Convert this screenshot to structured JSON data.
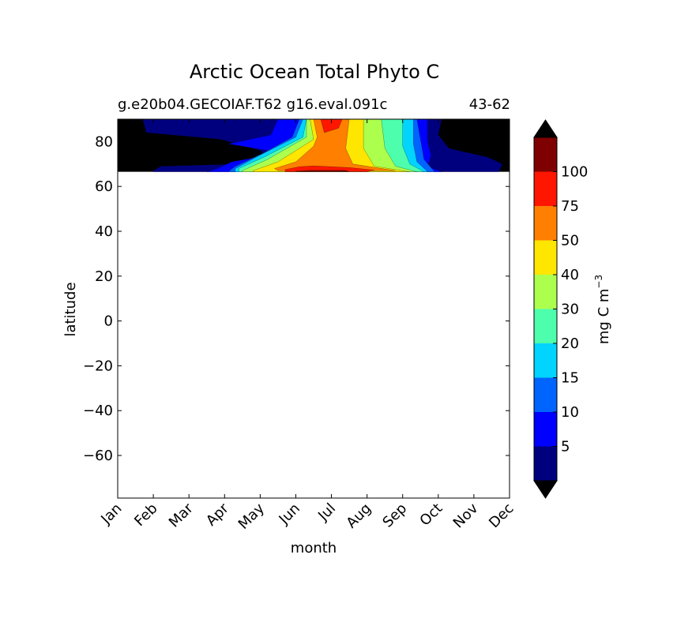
{
  "chart_data": {
    "type": "heatmap",
    "title": "Arctic Ocean Total Phyto C",
    "subtitle_left": "g.e20b04.GECOIAF.T62 g16.eval.091c",
    "subtitle_right": "43-62",
    "xlabel": "month",
    "ylabel": "latitude",
    "x_ticks": [
      "Jan",
      "Feb",
      "Mar",
      "Apr",
      "May",
      "Jun",
      "Jul",
      "Aug",
      "Sep",
      "Oct",
      "Nov",
      "Dec"
    ],
    "y_ticks": [
      "80",
      "60",
      "40",
      "20",
      "0",
      "−20",
      "−40",
      "−60"
    ],
    "y_tick_values": [
      80,
      60,
      40,
      20,
      0,
      -20,
      -40,
      -60
    ],
    "ylim": [
      -79,
      90
    ],
    "data_lat_range": [
      66.5,
      90
    ],
    "colorbar": {
      "label": "mg C m",
      "label_exponent": "−3",
      "tick_labels": [
        "5",
        "10",
        "15",
        "20",
        "30",
        "40",
        "50",
        "75",
        "100"
      ],
      "levels": [
        0,
        5,
        10,
        15,
        20,
        30,
        40,
        50,
        75,
        100,
        125
      ],
      "colors": [
        "#00007f",
        "#0000ff",
        "#0064ff",
        "#00d4ff",
        "#4dffad",
        "#adff4d",
        "#ffe600",
        "#ff7f00",
        "#ff1600",
        "#7f0000"
      ],
      "under_color": "#000000",
      "over_color": "#000000"
    },
    "background_color": "#000000",
    "contour_bands": [
      {
        "level": 5,
        "color": "#00007f",
        "extent": [
          [
            0.7,
            90
          ],
          [
            0.8,
            84
          ],
          [
            2.9,
            81
          ],
          [
            4.0,
            76
          ],
          [
            4.2,
            72
          ],
          [
            3.4,
            70
          ],
          [
            1.2,
            69
          ],
          [
            1.0,
            67
          ],
          [
            1.0,
            66.5
          ],
          [
            10.7,
            66.5
          ],
          [
            10.8,
            70
          ],
          [
            10.4,
            73
          ],
          [
            9.3,
            77
          ],
          [
            9.0,
            83
          ],
          [
            9.1,
            90
          ]
        ]
      },
      {
        "level": 10,
        "color": "#0000ff",
        "extent": [
          [
            4.5,
            90
          ],
          [
            4.3,
            83
          ],
          [
            3.1,
            79
          ],
          [
            4.6,
            75
          ],
          [
            3.2,
            71
          ],
          [
            2.8,
            68
          ],
          [
            2.5,
            66.5
          ],
          [
            9.1,
            66.5
          ],
          [
            8.7,
            69
          ],
          [
            8.8,
            74
          ],
          [
            8.7,
            80
          ],
          [
            8.7,
            90
          ]
        ]
      },
      {
        "level": 15,
        "color": "#0064ff",
        "extent": [
          [
            5.1,
            90
          ],
          [
            4.9,
            82
          ],
          [
            4.1,
            75
          ],
          [
            3.3,
            69
          ],
          [
            3.1,
            66.5
          ],
          [
            8.9,
            66.5
          ],
          [
            8.6,
            72
          ],
          [
            8.5,
            81
          ],
          [
            8.4,
            90
          ]
        ]
      },
      {
        "level": 20,
        "color": "#00d4ff",
        "extent": [
          [
            5.2,
            90
          ],
          [
            5.0,
            82
          ],
          [
            4.0,
            74
          ],
          [
            3.3,
            68
          ],
          [
            3.3,
            66.5
          ],
          [
            8.7,
            66.5
          ],
          [
            8.4,
            71
          ],
          [
            8.3,
            79
          ],
          [
            8.3,
            90
          ]
        ]
      },
      {
        "level": 30,
        "color": "#4dffad",
        "extent": [
          [
            5.3,
            90
          ],
          [
            5.2,
            82
          ],
          [
            4.1,
            73
          ],
          [
            3.4,
            68
          ],
          [
            3.4,
            66.5
          ],
          [
            8.6,
            66.5
          ],
          [
            8.2,
            70
          ],
          [
            8.0,
            78
          ],
          [
            8.0,
            90
          ]
        ]
      },
      {
        "level": 40,
        "color": "#adff4d",
        "extent": [
          [
            5.3,
            90
          ],
          [
            5.3,
            82
          ],
          [
            4.2,
            72
          ],
          [
            3.5,
            67
          ],
          [
            3.5,
            66.5
          ],
          [
            8.4,
            66.5
          ],
          [
            7.8,
            69
          ],
          [
            7.5,
            77
          ],
          [
            7.4,
            90
          ]
        ]
      },
      {
        "level": 50,
        "color": "#ffe600",
        "extent": [
          [
            5.4,
            90
          ],
          [
            5.5,
            81
          ],
          [
            4.5,
            71
          ],
          [
            3.8,
            67
          ],
          [
            3.8,
            66.5
          ],
          [
            8.2,
            66.5
          ],
          [
            7.2,
            69
          ],
          [
            6.9,
            77
          ],
          [
            6.9,
            90
          ]
        ]
      },
      {
        "level": 75,
        "color": "#ff7f00",
        "extent": [
          [
            5.5,
            90
          ],
          [
            5.6,
            82
          ],
          [
            5.5,
            78
          ],
          [
            5.0,
            71
          ],
          [
            4.4,
            68
          ],
          [
            4.5,
            67
          ],
          [
            7.8,
            67
          ],
          [
            6.6,
            70
          ],
          [
            6.4,
            77
          ],
          [
            6.5,
            90
          ]
        ]
      },
      {
        "level": 100,
        "color": "#ff1600",
        "extent": [
          [
            5.7,
            90
          ],
          [
            5.8,
            84
          ],
          [
            6.2,
            86
          ],
          [
            6.3,
            90
          ]
        ]
      },
      {
        "level": 100,
        "color": "#ff1600",
        "extent": [
          [
            4.7,
            67.5
          ],
          [
            5.1,
            68.8
          ],
          [
            5.5,
            69.2
          ],
          [
            6.5,
            68.4
          ],
          [
            7.2,
            67.3
          ],
          [
            7.0,
            66.6
          ],
          [
            4.7,
            66.6
          ]
        ]
      },
      {
        "level": 125,
        "color": "#7f0000",
        "extent": [
          [
            5.0,
            66.8
          ],
          [
            5.4,
            67.2
          ],
          [
            6.4,
            67.2
          ],
          [
            6.5,
            66.6
          ],
          [
            5.0,
            66.6
          ]
        ]
      }
    ]
  }
}
